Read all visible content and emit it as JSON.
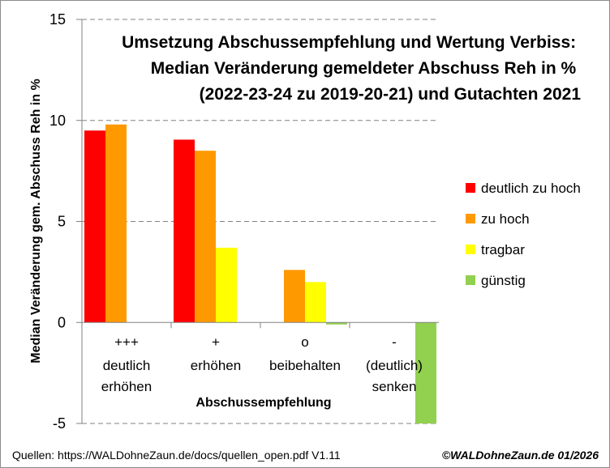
{
  "chart_data": {
    "type": "bar",
    "title": [
      "Umsetzung Abschussempfehlung und Wertung Verbiss:",
      "Median Veränderung gemeldeter Abschuss Reh in %",
      "(2022-23-24 zu 2019-20-21) und Gutachten 2021"
    ],
    "xlabel": "Abschussempfehlung",
    "ylabel": "Median Veränderung gem. Abschuss Reh in %",
    "ylim": [
      -5,
      15
    ],
    "yticks": [
      -5,
      0,
      5,
      10,
      15
    ],
    "grid": true,
    "legend_position": "right",
    "categories": [
      [
        "+++",
        "deutlich",
        "erhöhen"
      ],
      [
        "+",
        "erhöhen"
      ],
      [
        "o",
        "beibehalten"
      ],
      [
        "-",
        "(deutlich)",
        "senken"
      ]
    ],
    "series": [
      {
        "name": "deutlich zu hoch",
        "color": "#ff0000",
        "values": [
          9.5,
          9.05,
          null,
          null
        ]
      },
      {
        "name": "zu hoch",
        "color": "#ff9900",
        "values": [
          9.8,
          8.5,
          2.6,
          null
        ]
      },
      {
        "name": "tragbar",
        "color": "#ffff00",
        "values": [
          null,
          3.7,
          2.0,
          null
        ]
      },
      {
        "name": "günstig",
        "color": "#92d050",
        "values": [
          null,
          null,
          -0.1,
          -5.0
        ]
      }
    ]
  },
  "footer": {
    "source": "Quellen: https://WALDohneZaun.de/docs/quellen_open.pdf  V1.11",
    "copyright": "©WALDohneZaun.de  01/2026"
  }
}
